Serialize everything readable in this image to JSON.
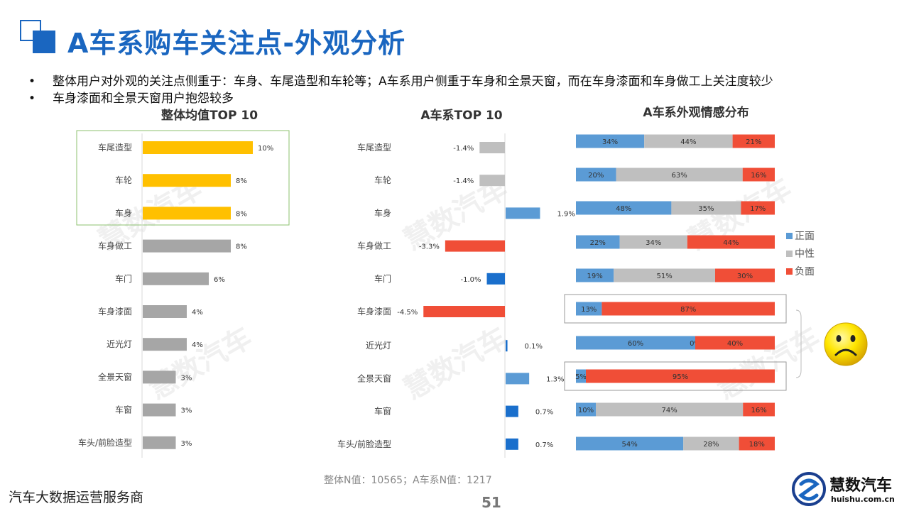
{
  "title": "A车系购车关注点-外观分析",
  "bullets": [
    "整体用户对外观的关注点侧重于：车身、车尾造型和车轮等；A车系用户侧重于车身和全景天窗，而在车身漆面和车身做工上关注度较少",
    "车身漆面和全景天窗用户抱怨较多"
  ],
  "bullet_marker": "•",
  "watermark_text": "慧数汽车",
  "sample_note": "整体N值：10565；A车系N值：1217",
  "footer_left": "汽车大数据运营服务商",
  "page_number": "51",
  "logo": {
    "name": "慧数汽车",
    "url": "huishu.com.cn"
  },
  "colors": {
    "accent": "#1a66c0",
    "highlight": "#ffc000",
    "gray_bar": "#a6a6a6",
    "positive": "#5b9bd5",
    "neutral": "#bfbfbf",
    "negative": "#f04e37",
    "blue_strong": "#1a6fcc",
    "frame_green": "#8dc26f"
  },
  "chart_data": [
    {
      "type": "bar",
      "orientation": "horizontal",
      "title": "整体均值TOP 10",
      "categories": [
        "车尾造型",
        "车轮",
        "车身",
        "车身做工",
        "车门",
        "车身漆面",
        "近光灯",
        "全景天窗",
        "车窗",
        "车头/前脸造型"
      ],
      "values": [
        10,
        8,
        8,
        8,
        6,
        4,
        4,
        3,
        3,
        3
      ],
      "value_labels": [
        "10%",
        "8%",
        "8%",
        "8%",
        "6%",
        "4%",
        "4%",
        "3%",
        "3%",
        "3%"
      ],
      "highlighted": [
        0,
        1,
        2
      ],
      "unit": "%"
    },
    {
      "type": "bar",
      "orientation": "horizontal",
      "title": "A车系TOP 10",
      "categories": [
        "车尾造型",
        "车轮",
        "车身",
        "车身做工",
        "车门",
        "车身漆面",
        "近光灯",
        "全景天窗",
        "车窗",
        "车头/前脸造型"
      ],
      "values": [
        -1.4,
        -1.4,
        1.9,
        -3.3,
        -1.0,
        -4.5,
        0.1,
        1.3,
        0.7,
        0.7
      ],
      "value_labels": [
        "-1.4%",
        "-1.4%",
        "1.9%",
        "-3.3%",
        "-1.0%",
        "-4.5%",
        "0.1%",
        "1.3%",
        "0.7%",
        "0.7%"
      ],
      "unit": "%"
    },
    {
      "type": "bar",
      "orientation": "horizontal",
      "stacked": true,
      "title": "A车系外观情感分布",
      "categories": [
        "车尾造型",
        "车轮",
        "车身",
        "车身做工",
        "车门",
        "车身漆面",
        "近光灯",
        "全景天窗",
        "车窗",
        "车头/前脸造型"
      ],
      "series": [
        {
          "name": "正面",
          "values": [
            34,
            20,
            48,
            22,
            19,
            13,
            60,
            5,
            10,
            54
          ]
        },
        {
          "name": "中性",
          "values": [
            44,
            63,
            35,
            34,
            51,
            0,
            0,
            0,
            74,
            28
          ]
        },
        {
          "name": "负面",
          "values": [
            21,
            16,
            17,
            44,
            30,
            87,
            40,
            95,
            16,
            18
          ]
        }
      ],
      "neutral_label_on_zero": [
        false,
        false,
        false,
        false,
        false,
        false,
        true,
        false,
        false,
        false
      ],
      "framed_rows": [
        5,
        7
      ],
      "legend": "right",
      "unit": "%"
    }
  ]
}
